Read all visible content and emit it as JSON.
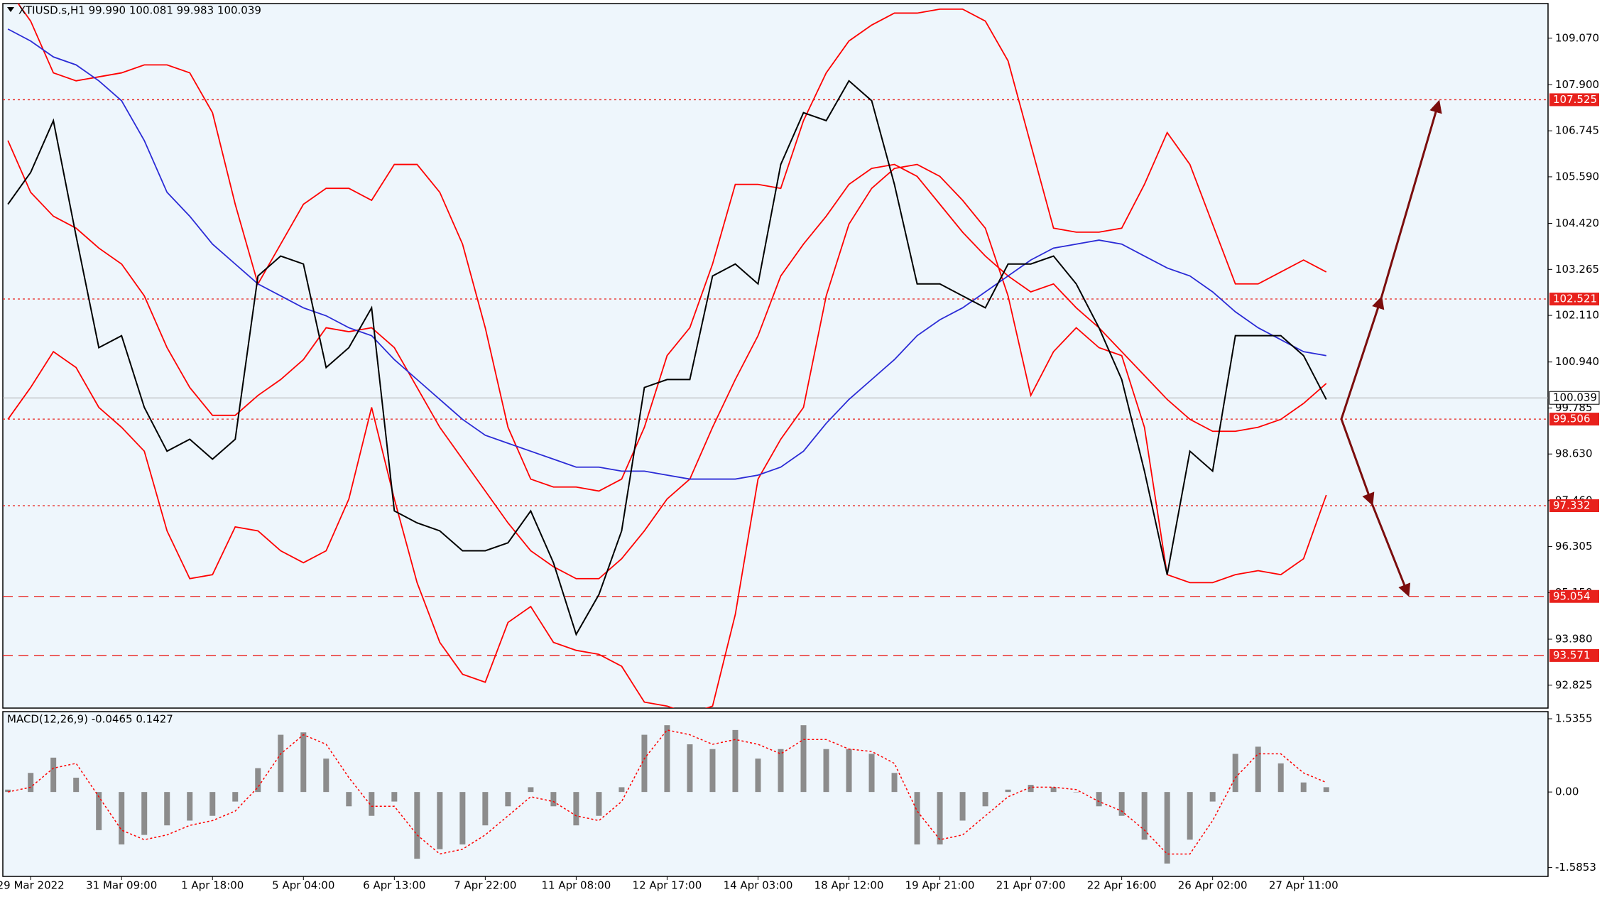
{
  "chart_data": [
    {
      "type": "line",
      "title": "XTIUSD.s,H1  99.990 100.081 99.983 100.039",
      "categories": [
        null,
        "29 Mar 2022",
        null,
        null,
        null,
        "31 Mar 09:00",
        null,
        null,
        null,
        "1 Apr 18:00",
        null,
        null,
        null,
        "5 Apr 04:00",
        null,
        null,
        null,
        "6 Apr 13:00",
        null,
        null,
        null,
        "7 Apr 22:00",
        null,
        null,
        null,
        "11 Apr 08:00",
        null,
        null,
        null,
        "12 Apr 17:00",
        null,
        null,
        null,
        "14 Apr 03:00",
        null,
        null,
        null,
        "18 Apr 12:00",
        null,
        null,
        null,
        "19 Apr 21:00",
        null,
        null,
        null,
        "21 Apr 07:00",
        null,
        null,
        null,
        "22 Apr 16:00",
        null,
        null,
        null,
        "26 Apr 02:00",
        null,
        null,
        null,
        "27 Apr 11:00",
        null
      ],
      "ylim": [
        92.25,
        109.94
      ],
      "yticks": [
        {
          "value": 109.07,
          "label": "109.070"
        },
        {
          "value": 107.9,
          "label": "107.900"
        },
        106.745,
        {
          "value": 105.59,
          "label": "105.590"
        },
        {
          "value": 104.42,
          "label": "104.420"
        },
        103.265,
        {
          "value": 102.11,
          "label": "102.110"
        },
        {
          "value": 100.94,
          "label": "100.940"
        },
        99.785,
        {
          "value": 98.63,
          "label": "98.630"
        },
        {
          "value": 97.46,
          "label": "97.460"
        },
        96.305,
        {
          "value": 95.15,
          "label": "95.150"
        },
        {
          "value": 93.98,
          "label": "93.980"
        },
        92.825
      ],
      "series": [
        {
          "color": "#ff0000",
          "values": [
            110.3,
            109.5,
            108.2,
            108.0,
            108.1,
            108.2,
            108.4,
            108.4,
            108.2,
            107.2,
            104.9,
            102.9,
            103.9,
            104.9,
            105.3,
            105.3,
            105.0,
            105.9,
            105.9,
            105.2,
            103.9,
            101.8,
            99.3,
            98.0,
            97.8,
            97.8,
            97.7,
            98.0,
            99.3,
            101.1,
            101.8,
            103.4,
            105.4,
            105.4,
            105.3,
            107.0,
            108.2,
            109.0,
            109.4,
            109.7,
            109.7,
            109.8,
            109.8,
            109.5,
            108.5,
            106.4,
            104.3,
            104.2,
            104.2,
            104.3,
            105.4,
            106.7,
            105.9,
            104.4,
            102.9,
            102.9,
            103.2,
            103.5,
            103.2
          ]
        },
        {
          "color": "#ff0000",
          "values": [
            106.5,
            105.2,
            104.6,
            104.3,
            103.8,
            103.4,
            102.6,
            101.3,
            100.3,
            99.6,
            99.6,
            100.1,
            100.5,
            101.0,
            101.8,
            101.7,
            101.8,
            101.3,
            100.3,
            99.3,
            98.5,
            97.7,
            96.9,
            96.2,
            95.8,
            95.5,
            95.5,
            96.0,
            96.7,
            97.5,
            98.0,
            99.3,
            100.5,
            101.6,
            103.1,
            103.9,
            104.6,
            105.4,
            105.8,
            105.9,
            105.6,
            104.9,
            104.2,
            103.6,
            103.1,
            102.7,
            102.9,
            102.3,
            101.8,
            101.2,
            100.6,
            100.0,
            99.5,
            99.2,
            99.2,
            99.3,
            99.5,
            99.9,
            100.4
          ]
        },
        {
          "color": "#ff0000",
          "values": [
            99.5,
            100.3,
            101.2,
            100.8,
            99.8,
            99.3,
            98.7,
            96.7,
            95.5,
            95.6,
            96.8,
            96.7,
            96.2,
            95.9,
            96.2,
            97.5,
            99.8,
            97.5,
            95.4,
            93.9,
            93.1,
            92.9,
            94.4,
            94.8,
            93.9,
            93.7,
            93.6,
            93.3,
            92.4,
            92.3,
            92.1,
            92.3,
            94.6,
            98.0,
            99.0,
            99.8,
            102.6,
            104.4,
            105.3,
            105.8,
            105.9,
            105.6,
            105.0,
            104.3,
            102.6,
            100.1,
            101.2,
            101.8,
            101.3,
            101.1,
            99.3,
            95.6,
            95.4,
            95.4,
            95.6,
            95.7,
            95.6,
            96.0,
            97.6
          ]
        },
        {
          "color": "#2b2bd6",
          "values": [
            109.3,
            109.0,
            108.6,
            108.4,
            108.0,
            107.5,
            106.5,
            105.2,
            104.6,
            103.9,
            103.4,
            102.9,
            102.6,
            102.3,
            102.1,
            101.8,
            101.6,
            101.0,
            100.5,
            100.0,
            99.5,
            99.1,
            98.9,
            98.7,
            98.5,
            98.3,
            98.3,
            98.2,
            98.2,
            98.1,
            98.0,
            98.0,
            98.0,
            98.1,
            98.3,
            98.7,
            99.4,
            100.0,
            100.5,
            101.0,
            101.6,
            102.0,
            102.3,
            102.7,
            103.1,
            103.5,
            103.8,
            103.9,
            104.0,
            103.9,
            103.6,
            103.3,
            103.1,
            102.7,
            102.2,
            101.8,
            101.5,
            101.2,
            101.1
          ]
        },
        {
          "color": "#000000",
          "values": [
            104.9,
            105.7,
            107.0,
            104.1,
            101.3,
            101.6,
            99.8,
            98.7,
            99.0,
            98.5,
            99.0,
            103.1,
            103.6,
            103.4,
            100.8,
            101.3,
            102.3,
            97.2,
            96.9,
            96.7,
            96.2,
            96.2,
            96.4,
            97.2,
            95.9,
            94.1,
            95.1,
            96.7,
            100.3,
            100.5,
            100.5,
            103.1,
            103.4,
            102.9,
            105.9,
            107.2,
            107.0,
            108.0,
            107.5,
            105.4,
            102.9,
            102.9,
            102.6,
            102.3,
            103.4,
            103.4,
            103.6,
            102.9,
            101.8,
            100.5,
            98.2,
            95.6,
            98.7,
            98.2,
            101.6,
            101.6,
            101.6,
            101.1,
            100.0
          ]
        }
      ],
      "levels": [
        {
          "value": 107.525,
          "style": "dotted"
        },
        {
          "value": 102.521,
          "style": "dotted"
        },
        {
          "value": 99.506,
          "style": "dotted"
        },
        {
          "value": 97.332,
          "style": "dotted"
        },
        {
          "value": 95.054,
          "style": "dashed"
        },
        {
          "value": 93.571,
          "style": "dashed"
        }
      ],
      "level_color": "#e8211c",
      "last_price": 100.039
    },
    {
      "type": "macd",
      "title": "MACD(12,26,9) -0.0465 0.1427",
      "ylim": [
        -1.77,
        1.685
      ],
      "yticks": [
        1.5355,
        {
          "value": 0,
          "label": "0.00"
        },
        -1.5853
      ],
      "series": [
        {
          "color": "#8c8c8c",
          "style": "bar",
          "values": [
            0.05,
            0.4,
            0.72,
            0.3,
            -0.8,
            -1.1,
            -0.9,
            -0.7,
            -0.6,
            -0.5,
            -0.2,
            0.5,
            1.2,
            1.25,
            0.7,
            -0.3,
            -0.5,
            -0.2,
            -1.4,
            -1.2,
            -1.1,
            -0.7,
            -0.3,
            0.1,
            -0.3,
            -0.7,
            -0.5,
            0.1,
            1.2,
            1.4,
            1.0,
            0.9,
            1.3,
            0.7,
            0.9,
            1.4,
            0.9,
            0.9,
            0.8,
            0.4,
            -1.1,
            -1.1,
            -0.6,
            -0.3,
            0.05,
            0.15,
            0.1,
            0.0,
            -0.3,
            -0.5,
            -1.0,
            -1.5,
            -1.0,
            -0.2,
            0.8,
            0.95,
            0.6,
            0.2,
            0.1
          ]
        },
        {
          "color": "#ff0000",
          "style": "dotted",
          "values": [
            0.0,
            0.1,
            0.5,
            0.6,
            -0.1,
            -0.8,
            -1.0,
            -0.9,
            -0.7,
            -0.6,
            -0.4,
            0.1,
            0.8,
            1.2,
            1.0,
            0.3,
            -0.3,
            -0.3,
            -0.9,
            -1.3,
            -1.2,
            -0.9,
            -0.5,
            -0.1,
            -0.2,
            -0.5,
            -0.6,
            -0.2,
            0.7,
            1.3,
            1.2,
            1.0,
            1.1,
            1.0,
            0.8,
            1.1,
            1.1,
            0.9,
            0.85,
            0.6,
            -0.4,
            -1.0,
            -0.9,
            -0.5,
            -0.1,
            0.1,
            0.1,
            0.05,
            -0.2,
            -0.4,
            -0.8,
            -1.3,
            -1.3,
            -0.6,
            0.3,
            0.8,
            0.8,
            0.4,
            0.2
          ]
        }
      ]
    }
  ]
}
